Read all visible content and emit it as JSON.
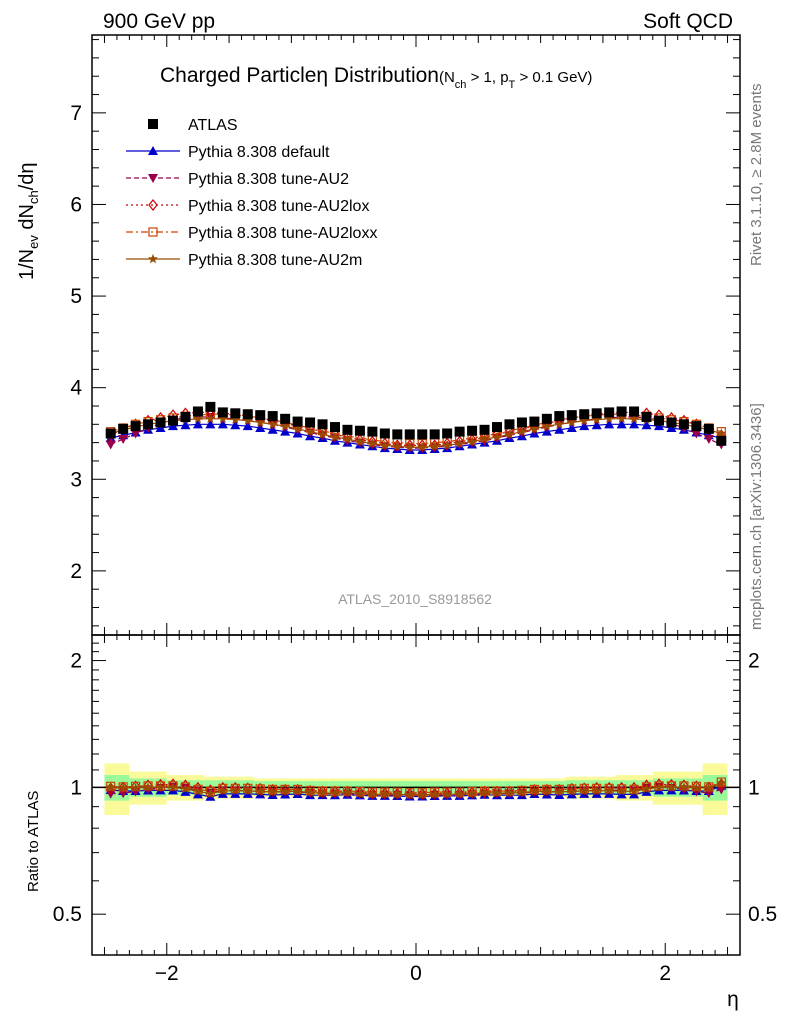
{
  "header": {
    "left": "900 GeV pp",
    "right": "Soft QCD"
  },
  "side_text": {
    "rivet": "Rivet 3.1.10, ≥ 2.8M events",
    "source": "mcplots.cern.ch [arXiv:1306.3436]"
  },
  "title": {
    "main": "Charged Particleη Distribution",
    "cond_open": "(N",
    "cond_sub1": "ch",
    "cond_mid": " > 1, p",
    "cond_sub2": "T",
    "cond_close": " > 0.1 GeV)"
  },
  "ylabel": {
    "p1": "1/N",
    "s1": "ev",
    "p2": " dN",
    "s2": "ch",
    "p3": "/dη"
  },
  "ratio_ylabel": "Ratio to ATLAS",
  "xlabel": "η",
  "analysis_label": "ATLAS_2010_S8918562",
  "colors": {
    "ATLAS": "#000000",
    "default": "#0000cc",
    "AU2": "#99004c",
    "AU2lox": "#cc0000",
    "AU2loxx": "#cc4400",
    "AU2m": "#994c00",
    "band_inner": "#9afa9a",
    "band_outer": "#fafa99"
  },
  "chart_data": {
    "type": "scatter",
    "x": [
      -2.45,
      -2.35,
      -2.25,
      -2.15,
      -2.05,
      -1.95,
      -1.85,
      -1.75,
      -1.65,
      -1.55,
      -1.45,
      -1.35,
      -1.25,
      -1.15,
      -1.05,
      -0.95,
      -0.85,
      -0.75,
      -0.65,
      -0.55,
      -0.45,
      -0.35,
      -0.25,
      -0.15,
      -0.05,
      0.05,
      0.15,
      0.25,
      0.35,
      0.45,
      0.55,
      0.65,
      0.75,
      0.85,
      0.95,
      1.05,
      1.15,
      1.25,
      1.35,
      1.45,
      1.55,
      1.65,
      1.75,
      1.85,
      1.95,
      2.05,
      2.15,
      2.25,
      2.35,
      2.45
    ],
    "xlim": [
      -2.6,
      2.6
    ],
    "xticks": [
      -2,
      0,
      2
    ],
    "xtick_labels": [
      "−2",
      "0",
      "2"
    ],
    "main": {
      "ylim": [
        1.3,
        7.85
      ],
      "yticks": [
        2,
        3,
        4,
        5,
        6,
        7
      ],
      "ytick_labels": [
        "2",
        "3",
        "4",
        "5",
        "6",
        "7"
      ]
    },
    "ratio": {
      "ylim": [
        0.4,
        2.3
      ],
      "yticks": [
        0.5,
        1,
        2
      ],
      "ytick_labels": [
        "0.5",
        "1",
        "2"
      ],
      "band_inner_halfwidth": [
        0.07,
        0.07,
        0.05,
        0.05,
        0.05,
        0.04,
        0.04,
        0.04,
        0.04,
        0.04,
        0.04,
        0.04,
        0.035,
        0.035,
        0.035,
        0.035,
        0.035,
        0.035,
        0.035,
        0.035,
        0.035,
        0.035,
        0.035,
        0.035,
        0.035,
        0.035,
        0.035,
        0.035,
        0.035,
        0.035,
        0.035,
        0.035,
        0.035,
        0.035,
        0.035,
        0.035,
        0.035,
        0.04,
        0.04,
        0.04,
        0.04,
        0.04,
        0.04,
        0.04,
        0.05,
        0.05,
        0.05,
        0.05,
        0.07,
        0.07
      ],
      "band_outer_halfwidth": [
        0.14,
        0.14,
        0.09,
        0.09,
        0.09,
        0.07,
        0.07,
        0.07,
        0.06,
        0.06,
        0.06,
        0.06,
        0.05,
        0.05,
        0.05,
        0.05,
        0.05,
        0.05,
        0.05,
        0.05,
        0.05,
        0.05,
        0.05,
        0.05,
        0.05,
        0.05,
        0.05,
        0.05,
        0.05,
        0.05,
        0.05,
        0.05,
        0.05,
        0.05,
        0.05,
        0.05,
        0.05,
        0.06,
        0.06,
        0.06,
        0.06,
        0.07,
        0.07,
        0.07,
        0.09,
        0.09,
        0.09,
        0.09,
        0.14,
        0.14
      ]
    },
    "series": [
      {
        "name": "ATLAS",
        "key": "ATLAS",
        "marker": "square",
        "line": "none",
        "values": [
          3.5,
          3.55,
          3.58,
          3.6,
          3.62,
          3.64,
          3.68,
          3.74,
          3.79,
          3.73,
          3.72,
          3.71,
          3.7,
          3.69,
          3.66,
          3.63,
          3.62,
          3.6,
          3.57,
          3.54,
          3.53,
          3.52,
          3.5,
          3.49,
          3.49,
          3.49,
          3.49,
          3.5,
          3.52,
          3.53,
          3.54,
          3.57,
          3.6,
          3.62,
          3.63,
          3.66,
          3.69,
          3.7,
          3.71,
          3.72,
          3.73,
          3.74,
          3.74,
          3.68,
          3.64,
          3.62,
          3.6,
          3.58,
          3.55,
          3.42
        ]
      },
      {
        "name": "Pythia 8.308 default",
        "key": "default",
        "marker": "triangle-up",
        "line": "solid",
        "values": [
          3.45,
          3.48,
          3.51,
          3.54,
          3.56,
          3.58,
          3.59,
          3.6,
          3.6,
          3.6,
          3.59,
          3.58,
          3.56,
          3.54,
          3.52,
          3.5,
          3.47,
          3.45,
          3.42,
          3.4,
          3.38,
          3.36,
          3.34,
          3.33,
          3.32,
          3.32,
          3.33,
          3.34,
          3.36,
          3.38,
          3.4,
          3.42,
          3.45,
          3.47,
          3.5,
          3.52,
          3.54,
          3.56,
          3.58,
          3.59,
          3.6,
          3.6,
          3.6,
          3.59,
          3.58,
          3.56,
          3.54,
          3.51,
          3.48,
          3.45
        ]
      },
      {
        "name": "Pythia 8.308 tune-AU2",
        "key": "AU2",
        "marker": "triangle-down",
        "line": "dashed",
        "values": [
          3.38,
          3.44,
          3.5,
          3.56,
          3.61,
          3.65,
          3.67,
          3.68,
          3.68,
          3.67,
          3.66,
          3.64,
          3.62,
          3.6,
          3.57,
          3.54,
          3.51,
          3.48,
          3.45,
          3.42,
          3.4,
          3.38,
          3.36,
          3.35,
          3.34,
          3.34,
          3.35,
          3.36,
          3.38,
          3.4,
          3.42,
          3.45,
          3.48,
          3.51,
          3.54,
          3.57,
          3.6,
          3.62,
          3.64,
          3.66,
          3.67,
          3.68,
          3.68,
          3.67,
          3.65,
          3.61,
          3.56,
          3.5,
          3.44,
          3.38
        ]
      },
      {
        "name": "Pythia 8.308 tune-AU2lox",
        "key": "AU2lox",
        "marker": "diamond",
        "line": "dotted",
        "values": [
          3.48,
          3.55,
          3.6,
          3.64,
          3.67,
          3.7,
          3.72,
          3.73,
          3.73,
          3.72,
          3.71,
          3.69,
          3.67,
          3.64,
          3.61,
          3.58,
          3.55,
          3.52,
          3.49,
          3.46,
          3.43,
          3.41,
          3.39,
          3.37,
          3.37,
          3.37,
          3.37,
          3.39,
          3.41,
          3.43,
          3.46,
          3.49,
          3.52,
          3.55,
          3.58,
          3.61,
          3.64,
          3.67,
          3.69,
          3.71,
          3.72,
          3.73,
          3.73,
          3.72,
          3.7,
          3.67,
          3.64,
          3.6,
          3.55,
          3.48
        ]
      },
      {
        "name": "Pythia 8.308 tune-AU2loxx",
        "key": "AU2loxx",
        "marker": "open-square",
        "line": "dashdot",
        "values": [
          3.52,
          3.56,
          3.6,
          3.63,
          3.65,
          3.67,
          3.69,
          3.7,
          3.71,
          3.71,
          3.7,
          3.69,
          3.67,
          3.65,
          3.62,
          3.59,
          3.56,
          3.53,
          3.5,
          3.47,
          3.45,
          3.43,
          3.41,
          3.4,
          3.39,
          3.39,
          3.4,
          3.41,
          3.43,
          3.45,
          3.47,
          3.5,
          3.53,
          3.56,
          3.59,
          3.62,
          3.65,
          3.67,
          3.69,
          3.7,
          3.71,
          3.71,
          3.7,
          3.69,
          3.67,
          3.65,
          3.63,
          3.6,
          3.56,
          3.52
        ]
      },
      {
        "name": "Pythia 8.308 tune-AU2m",
        "key": "AU2m",
        "marker": "star",
        "line": "solid",
        "values": [
          3.5,
          3.54,
          3.57,
          3.6,
          3.62,
          3.64,
          3.65,
          3.66,
          3.66,
          3.66,
          3.65,
          3.64,
          3.62,
          3.6,
          3.58,
          3.55,
          3.52,
          3.49,
          3.46,
          3.44,
          3.41,
          3.39,
          3.37,
          3.36,
          3.35,
          3.35,
          3.36,
          3.37,
          3.39,
          3.41,
          3.44,
          3.46,
          3.49,
          3.52,
          3.55,
          3.58,
          3.6,
          3.62,
          3.64,
          3.65,
          3.66,
          3.66,
          3.66,
          3.65,
          3.64,
          3.62,
          3.6,
          3.57,
          3.54,
          3.5
        ]
      }
    ]
  }
}
